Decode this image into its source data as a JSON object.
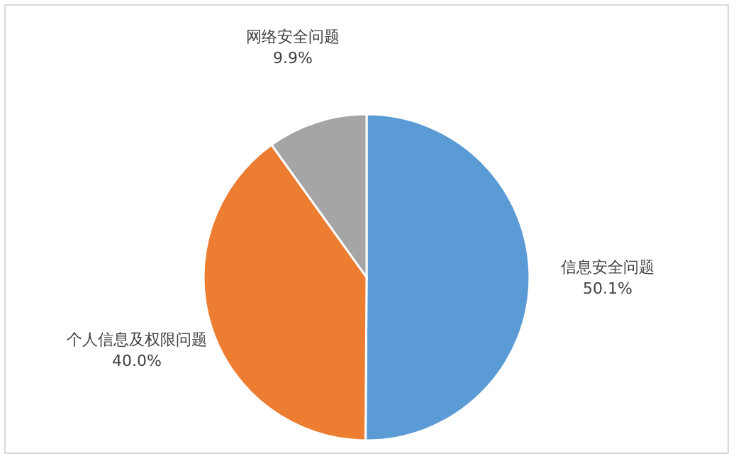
{
  "chart_data": {
    "type": "pie",
    "categories": [
      "信息安全问题",
      "个人信息及权限问题",
      "网络安全问题"
    ],
    "values": [
      50.1,
      40.0,
      9.9
    ],
    "value_labels": [
      "50.1%",
      "40.0%",
      "9.9%"
    ],
    "colors": [
      "#5b9bd5",
      "#ed7d31",
      "#a5a5a5"
    ],
    "legend": false
  }
}
